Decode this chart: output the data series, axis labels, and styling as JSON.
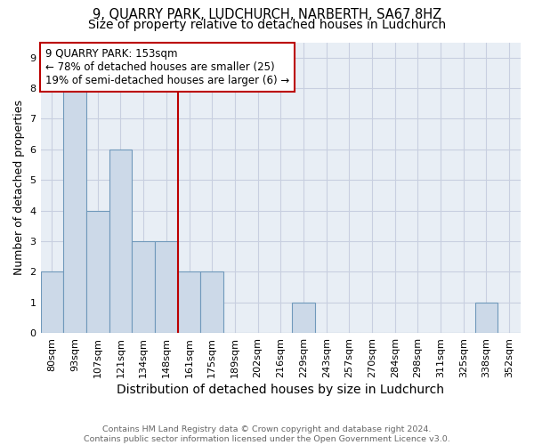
{
  "title1": "9, QUARRY PARK, LUDCHURCH, NARBERTH, SA67 8HZ",
  "title2": "Size of property relative to detached houses in Ludchurch",
  "xlabel": "Distribution of detached houses by size in Ludchurch",
  "ylabel": "Number of detached properties",
  "footer1": "Contains HM Land Registry data © Crown copyright and database right 2024.",
  "footer2": "Contains public sector information licensed under the Open Government Licence v3.0.",
  "categories": [
    "80sqm",
    "93sqm",
    "107sqm",
    "121sqm",
    "134sqm",
    "148sqm",
    "161sqm",
    "175sqm",
    "189sqm",
    "202sqm",
    "216sqm",
    "229sqm",
    "243sqm",
    "257sqm",
    "270sqm",
    "284sqm",
    "298sqm",
    "311sqm",
    "325sqm",
    "338sqm",
    "352sqm"
  ],
  "values": [
    2,
    8,
    4,
    6,
    3,
    3,
    2,
    2,
    0,
    0,
    0,
    1,
    0,
    0,
    0,
    0,
    0,
    0,
    0,
    1,
    0
  ],
  "bar_color": "#ccd9e8",
  "bar_edgecolor": "#7099bb",
  "bar_linewidth": 0.8,
  "vline_index": 5.5,
  "vline_color": "#bb0000",
  "vline_linewidth": 1.5,
  "annotation_text": "9 QUARRY PARK: 153sqm\n← 78% of detached houses are smaller (25)\n19% of semi-detached houses are larger (6) →",
  "annotation_box_facecolor": "#ffffff",
  "annotation_box_edgecolor": "#bb0000",
  "annotation_fontsize": 8.5,
  "ylim": [
    0,
    9.5
  ],
  "yticks": [
    0,
    1,
    2,
    3,
    4,
    5,
    6,
    7,
    8,
    9
  ],
  "grid_color": "#c8cfe0",
  "background_color": "#e8eef5",
  "title1_fontsize": 10.5,
  "title2_fontsize": 10,
  "xlabel_fontsize": 10,
  "ylabel_fontsize": 9,
  "tick_fontsize": 8
}
